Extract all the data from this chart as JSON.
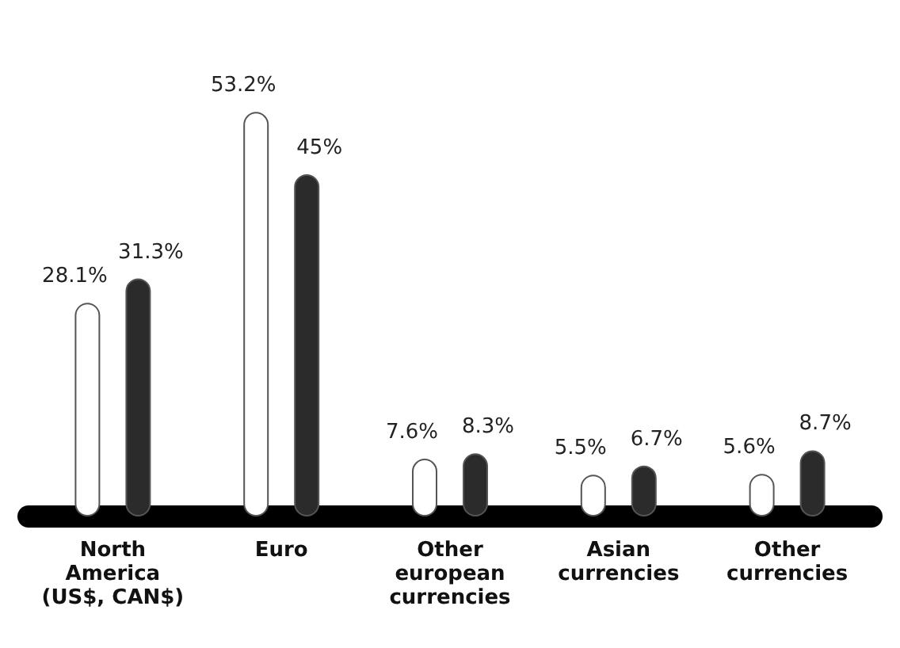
{
  "chart_data": {
    "type": "bar",
    "categories": [
      "North\nAmerica\n(US$, CAN$)",
      "Euro",
      "Other\neuropean\ncurrencies",
      "Asian\ncurrencies",
      "Other\ncurrencies"
    ],
    "series": [
      {
        "color": "#ffffff",
        "values": [
          28.1,
          53.2,
          7.6,
          5.5,
          5.6
        ],
        "value_labels": [
          "28.1%",
          "53.2%",
          "7.6%",
          "5.5%",
          "5.6%"
        ]
      },
      {
        "color": "#2b2b2b",
        "values": [
          31.3,
          45,
          8.3,
          6.7,
          8.7
        ],
        "value_labels": [
          "31.3%",
          "45%",
          "8.3%",
          "6.7%",
          "8.7%"
        ]
      }
    ]
  }
}
